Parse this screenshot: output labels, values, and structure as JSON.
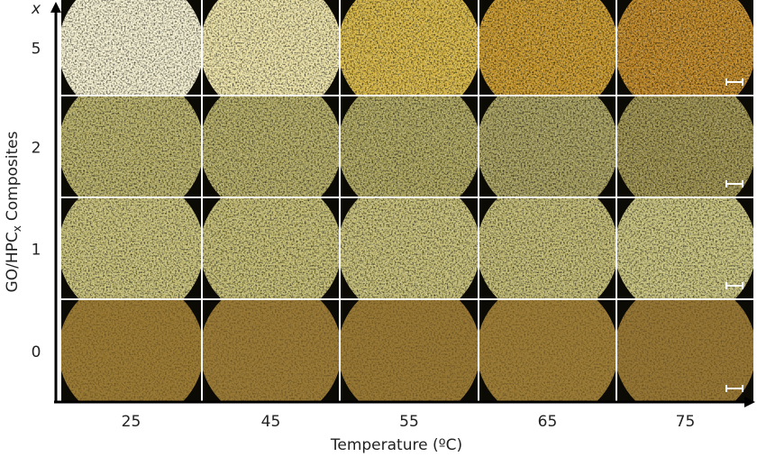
{
  "figure": {
    "y_axis_variable": "x",
    "y_axis_label": {
      "main": "GO/HPC",
      "subscript": "x",
      "suffix": "Composites"
    },
    "x_axis_label": "Temperature (ºC)",
    "rows": [
      "5",
      "2",
      "1",
      "0"
    ],
    "columns": [
      "25",
      "45",
      "55",
      "65",
      "75"
    ]
  }
}
